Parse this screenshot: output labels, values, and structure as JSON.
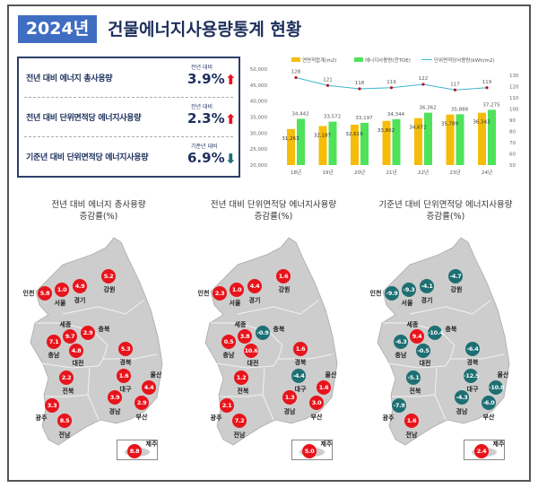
{
  "header": {
    "year": "2024년",
    "title": "건물에너지사용량통계 현황"
  },
  "summary": [
    {
      "label": "전년 대비 에너지 총사용량",
      "sub": "전년 대비",
      "value": "3.9%",
      "direction": "up"
    },
    {
      "label": "전년 대비 단위면적당 에너지사용량",
      "sub": "전년 대비",
      "value": "2.3%",
      "direction": "up"
    },
    {
      "label": "기준년 대비 단위면적당 에너지사용량",
      "sub": "기준년 대비",
      "value": "6.9%",
      "direction": "down"
    }
  ],
  "colors": {
    "up": "#e8141b",
    "down": "#1d6f73",
    "area": "#f5bd0a",
    "energy": "#4fe25a",
    "intensity": "#3bb6cf",
    "navy": "#1c2f5c"
  },
  "chart_data": {
    "type": "bar+line",
    "categories": [
      "18년",
      "19년",
      "20년",
      "21년",
      "22년",
      "23년",
      "24년"
    ],
    "series": [
      {
        "name": "연면적합계(m2)",
        "type": "bar",
        "axis": "left",
        "values": [
          31263,
          32187,
          32619,
          33802,
          34672,
          35789,
          36343
        ]
      },
      {
        "name": "에너지사용량(천TOE)",
        "type": "bar",
        "axis": "left",
        "values": [
          34442,
          33572,
          33197,
          34344,
          36362,
          35888,
          37275
        ]
      },
      {
        "name": "단위면적당사용량(kWh/m2)",
        "type": "line",
        "axis": "right",
        "values": [
          128,
          121,
          118,
          119,
          122,
          117,
          119
        ]
      }
    ],
    "left_ticks": [
      "50,000",
      "45,000",
      "40,000",
      "35,000",
      "30,000",
      "25,000",
      "20,000"
    ],
    "right_ticks": [
      "130",
      "120",
      "110",
      "100",
      "90",
      "80",
      "70",
      "60",
      "50"
    ],
    "ylim_left": [
      20000,
      50000
    ],
    "ylim_right": [
      50,
      130
    ],
    "legend": "top"
  },
  "maps": [
    {
      "title1": "전년 대비 에너지 총사용량",
      "title2": "증감률(%)",
      "values": {
        "인천": "5.8",
        "서울": "1.0",
        "경기": "4.9",
        "강원": "5.2",
        "세종": "9.7",
        "충북": "2.9",
        "충남": "7.1",
        "대전": "4.8",
        "경북": "5.3",
        "대구": "1.6",
        "울산": "4.4",
        "전북": "2.2",
        "경남": "3.9",
        "부산": "2.9",
        "광주": "3.3",
        "전남": "8.5",
        "제주": "8.8"
      }
    },
    {
      "title1": "전년 대비 단위면적당 에너지사용량",
      "title2": "증감률(%)",
      "values": {
        "인천": "2.3",
        "서울": "1.0",
        "경기": "4.4",
        "강원": "1.6",
        "세종": "3.8",
        "충북": "-0.9",
        "충남": "0.5",
        "대전": "10.6",
        "경북": "1.6",
        "대구": "-4.4",
        "울산": "1.6",
        "전북": "1.2",
        "경남": "1.3",
        "부산": "3.0",
        "광주": "2.1",
        "전남": "7.2",
        "제주": "5.0"
      }
    },
    {
      "title1": "기준년 대비 단위면적당 에너지사용량",
      "title2": "증감률(%)",
      "values": {
        "인천": "-9.9",
        "서울": "-9.3",
        "경기": "-4.1",
        "강원": "-4.7",
        "세종": "9.4",
        "충북": "-10.4",
        "충남": "-6.3",
        "대전": "-0.5",
        "경북": "-6.4",
        "대구": "-12.5",
        "울산": "-10.8",
        "전북": "-5.1",
        "경남": "-4.3",
        "부산": "-6.0",
        "광주": "-7.9",
        "전남": "1.6",
        "제주": "2.4"
      }
    }
  ]
}
